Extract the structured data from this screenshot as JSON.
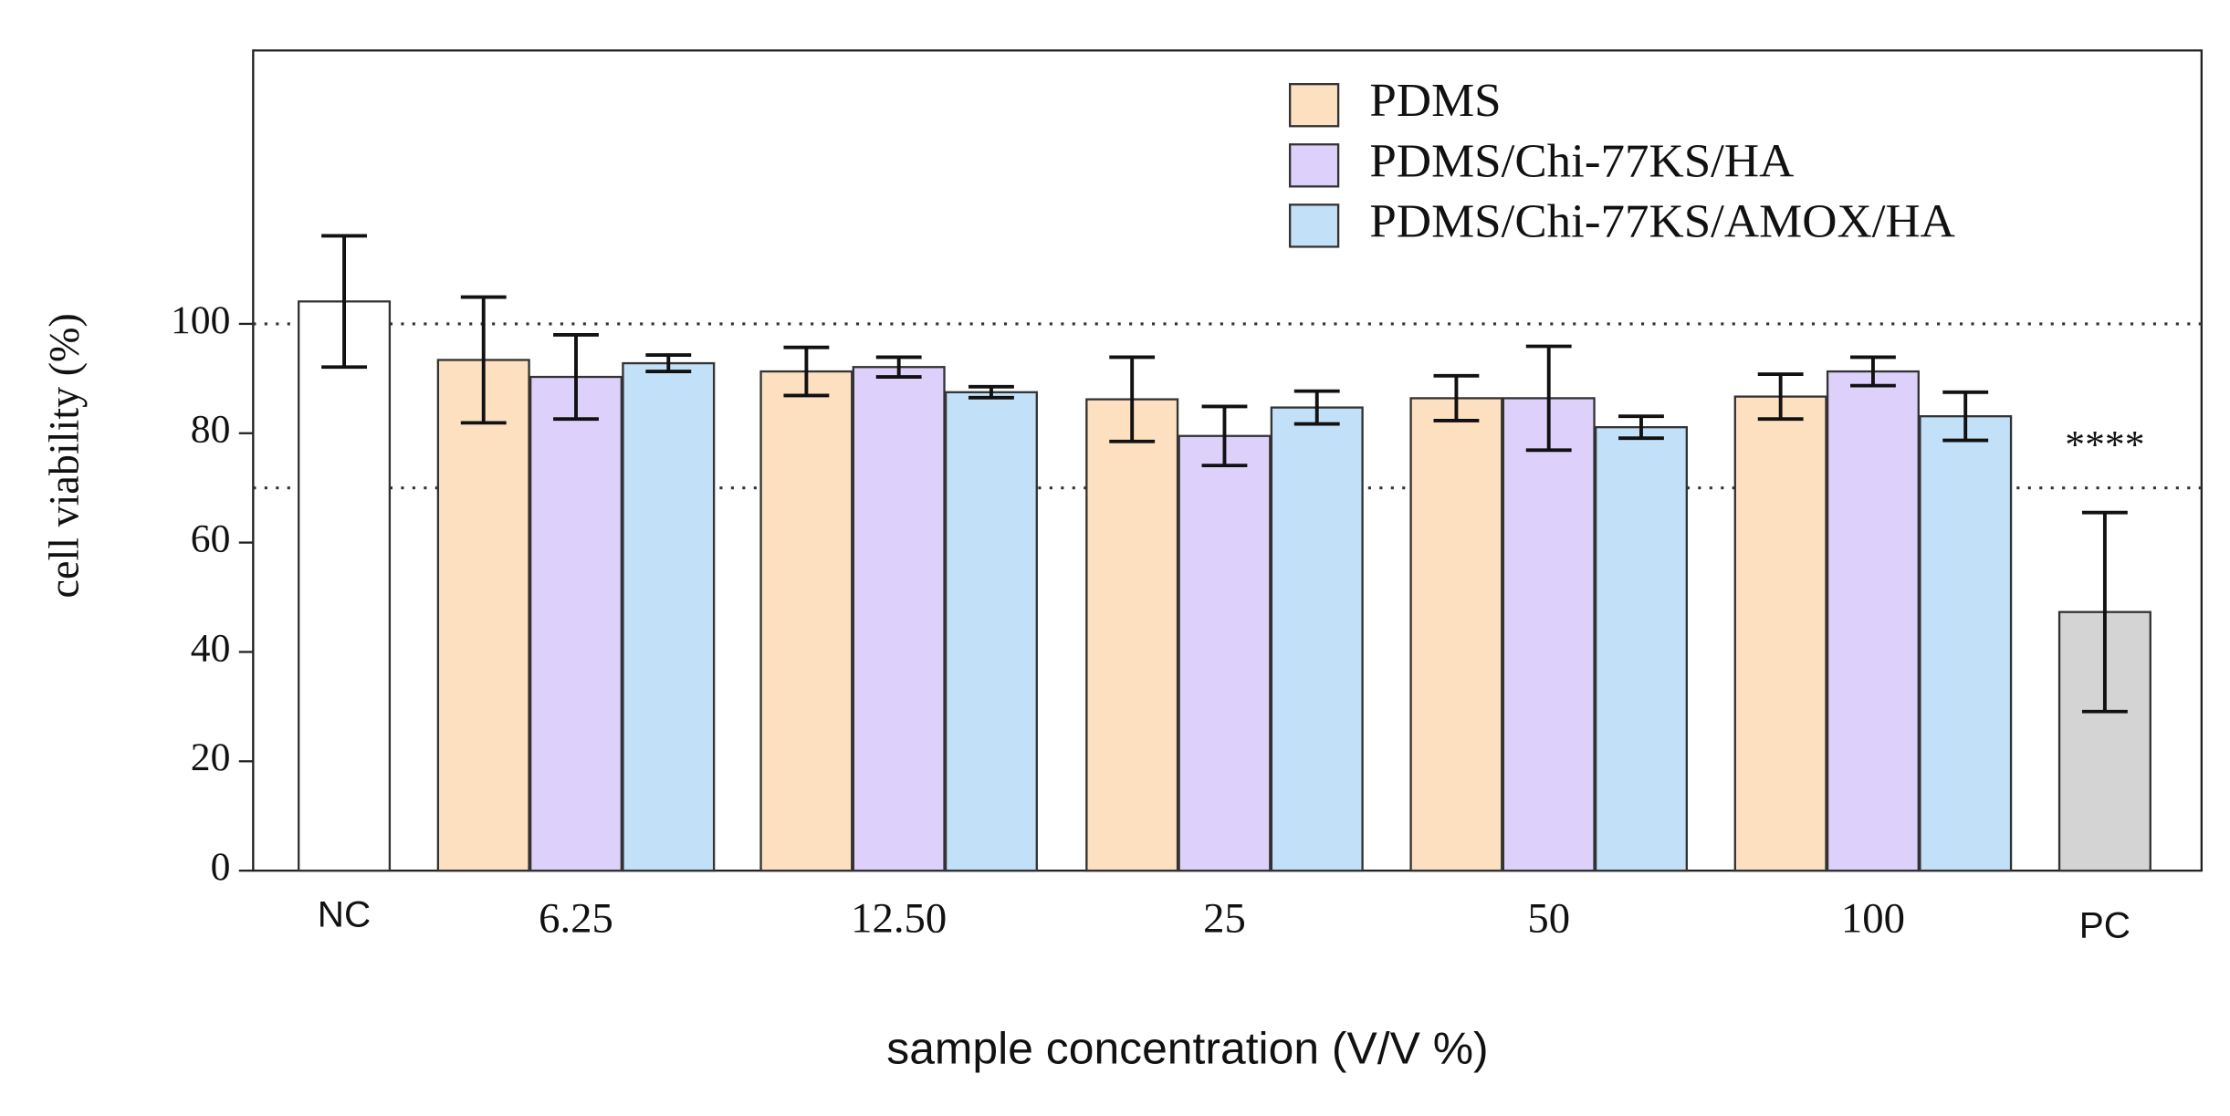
{
  "chart_data": {
    "type": "bar",
    "y_label": "cell viability (%)",
    "x_label": "sample concentration (V/V %)",
    "categories": [
      "NC",
      "6.25",
      "12.50",
      "25",
      "50",
      "100",
      "PC"
    ],
    "series": [
      {
        "name": "PDMS",
        "color": "#fde0c0",
        "values": [
          null,
          93.4,
          91.3,
          86.2,
          86.4,
          86.7,
          null
        ],
        "errors": [
          null,
          11.5,
          4.4,
          7.7,
          4.1,
          4.1,
          null
        ]
      },
      {
        "name": "PDMS/Chi-77KS/HA",
        "color": "#ddd0fb",
        "values": [
          null,
          90.3,
          92.1,
          79.5,
          86.4,
          91.3,
          null
        ],
        "errors": [
          null,
          7.7,
          1.8,
          5.4,
          9.5,
          2.6,
          null
        ]
      },
      {
        "name": "PDMS/Chi-77KS/AMOX/HA",
        "color": "#c2e0f8",
        "values": [
          null,
          92.8,
          87.5,
          84.7,
          81.1,
          83.1,
          null
        ],
        "errors": [
          null,
          1.5,
          1.0,
          3.0,
          2.0,
          4.4,
          null
        ]
      }
    ],
    "controls": {
      "values": [
        104.1,
        null,
        null,
        null,
        null,
        null,
        47.3
      ],
      "errors": [
        12.0,
        null,
        null,
        null,
        null,
        null,
        18.2
      ],
      "colors": [
        "#ffffff",
        null,
        null,
        null,
        null,
        null,
        "#d4d4d4"
      ]
    },
    "reference_lines": [
      100,
      70
    ],
    "annotation": "****",
    "ylim": [
      0,
      150
    ],
    "yticks": [
      0,
      20,
      40,
      60,
      80,
      100
    ],
    "legend": "top-right"
  }
}
